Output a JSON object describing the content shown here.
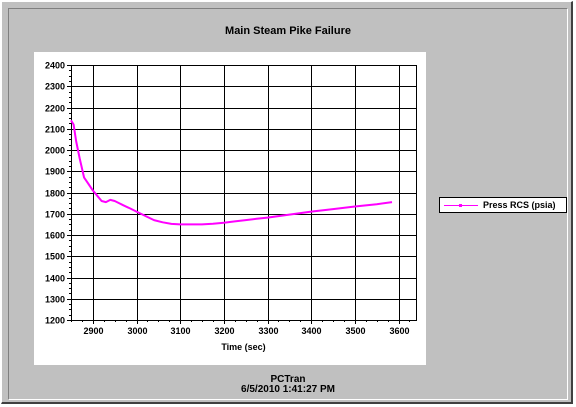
{
  "chart_data": {
    "type": "line",
    "title": "Main Steam Pike Failure",
    "xlabel": "Time (sec)",
    "ylabel": "",
    "xlim": [
      2850,
      3640
    ],
    "ylim": [
      1200,
      2400
    ],
    "xticks": [
      2900,
      3000,
      3100,
      3200,
      3300,
      3400,
      3500,
      3600
    ],
    "yticks": [
      1200,
      1300,
      1400,
      1500,
      1600,
      1700,
      1800,
      1900,
      2000,
      2100,
      2200,
      2300,
      2400
    ],
    "grid": true,
    "legend_position": "right",
    "series": [
      {
        "name": "Press RCS (psia)",
        "color": "#ff00ff",
        "x": [
          2850,
          2856,
          2862,
          2870,
          2880,
          2890,
          2900,
          2910,
          2920,
          2930,
          2940,
          2950,
          2960,
          2970,
          2985,
          3000,
          3020,
          3040,
          3060,
          3080,
          3100,
          3125,
          3150,
          3175,
          3200,
          3225,
          3250,
          3275,
          3300,
          3350,
          3400,
          3450,
          3500,
          3550,
          3585
        ],
        "y": [
          2140,
          2120,
          2040,
          1960,
          1870,
          1840,
          1810,
          1785,
          1760,
          1755,
          1765,
          1760,
          1750,
          1740,
          1725,
          1710,
          1690,
          1670,
          1660,
          1652,
          1650,
          1650,
          1650,
          1653,
          1658,
          1664,
          1670,
          1676,
          1682,
          1696,
          1710,
          1722,
          1734,
          1745,
          1755
        ]
      }
    ]
  },
  "footer": {
    "app": "PCTran",
    "timestamp": "6/5/2010 1:41:27 PM"
  }
}
